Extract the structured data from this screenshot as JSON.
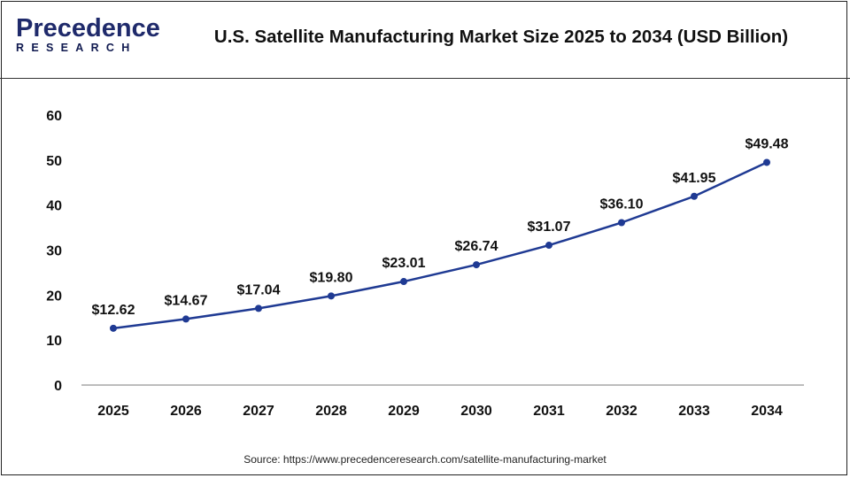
{
  "brand": {
    "logo_line1": "Precedence",
    "logo_line2": "RESEARCH"
  },
  "title": "U.S. Satellite Manufacturing Market Size 2025 to 2034 (USD Billion)",
  "source": "Source: https://www.precedenceresearch.com/satellite-manufacturing-market",
  "colors": {
    "line": "#1f3a93",
    "marker": "#1f3a93",
    "axis": "#bdbdbd"
  },
  "chart_data": {
    "type": "line",
    "title": "U.S. Satellite Manufacturing Market Size 2025 to 2034 (USD Billion)",
    "categories": [
      "2025",
      "2026",
      "2027",
      "2028",
      "2029",
      "2030",
      "2031",
      "2032",
      "2033",
      "2034"
    ],
    "values": [
      12.62,
      14.67,
      17.04,
      19.8,
      23.01,
      26.74,
      31.07,
      36.1,
      41.95,
      49.48
    ],
    "data_labels": [
      "$12.62",
      "$14.67",
      "$17.04",
      "$19.80",
      "$23.01",
      "$26.74",
      "$31.07",
      "$36.10",
      "$41.95",
      "$49.48"
    ],
    "yticks": [
      0,
      10,
      20,
      30,
      40,
      50,
      60
    ],
    "ylim": [
      0,
      60
    ],
    "grid": false,
    "legend": "none"
  }
}
